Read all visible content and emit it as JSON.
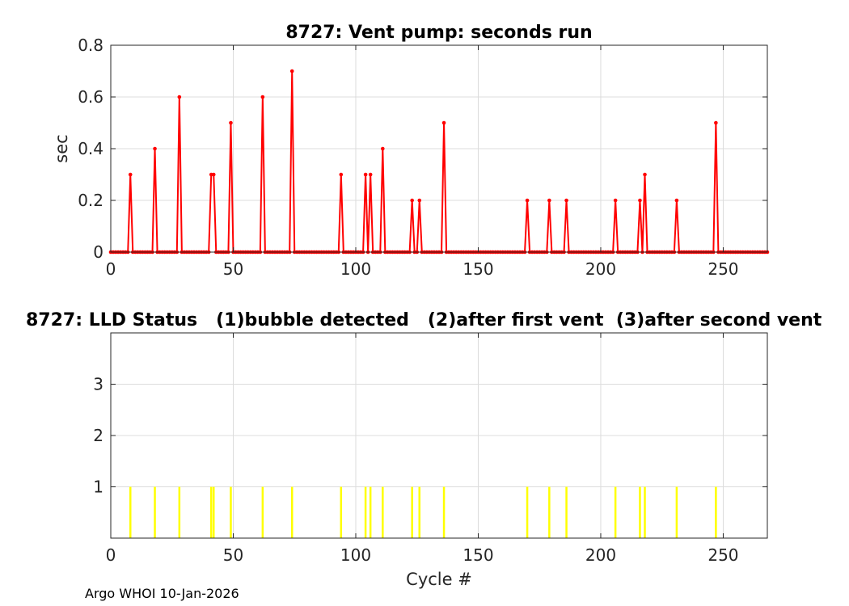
{
  "footer": "Argo WHOI 10-Jan-2026",
  "colors": {
    "pump": "#ff0000",
    "lld": "#ffff00",
    "grid": "#dcdcdc",
    "axis": "#262626"
  },
  "chart_data": [
    {
      "type": "line",
      "title": "8727: Vent pump: seconds run",
      "xlabel": "",
      "ylabel": "sec",
      "xlim": [
        0,
        268
      ],
      "ylim": [
        0,
        0.8
      ],
      "xticks": [
        0,
        50,
        100,
        150,
        200,
        250
      ],
      "yticks": [
        0,
        0.2,
        0.4,
        0.6,
        0.8
      ],
      "ytick_labels": [
        "0",
        "0.2",
        "0.4",
        "0.6",
        "0.8"
      ],
      "grid": true,
      "marker": "dot",
      "x_range": [
        0,
        268
      ],
      "baseline_value": 0,
      "nonzero_points": [
        {
          "x": 8,
          "y": 0.3
        },
        {
          "x": 18,
          "y": 0.4
        },
        {
          "x": 28,
          "y": 0.6
        },
        {
          "x": 41,
          "y": 0.3
        },
        {
          "x": 42,
          "y": 0.3
        },
        {
          "x": 49,
          "y": 0.5
        },
        {
          "x": 62,
          "y": 0.6
        },
        {
          "x": 74,
          "y": 0.7
        },
        {
          "x": 94,
          "y": 0.3
        },
        {
          "x": 104,
          "y": 0.3
        },
        {
          "x": 106,
          "y": 0.3
        },
        {
          "x": 111,
          "y": 0.4
        },
        {
          "x": 123,
          "y": 0.2
        },
        {
          "x": 126,
          "y": 0.2
        },
        {
          "x": 136,
          "y": 0.5
        },
        {
          "x": 170,
          "y": 0.2
        },
        {
          "x": 179,
          "y": 0.2
        },
        {
          "x": 186,
          "y": 0.2
        },
        {
          "x": 206,
          "y": 0.2
        },
        {
          "x": 216,
          "y": 0.2
        },
        {
          "x": 218,
          "y": 0.3
        },
        {
          "x": 231,
          "y": 0.2
        },
        {
          "x": 247,
          "y": 0.5
        }
      ]
    },
    {
      "type": "bar",
      "title": "8727: LLD Status   (1)bubble detected   (2)after first vent  (3)after second vent",
      "xlabel": "Cycle #",
      "ylabel": "",
      "xlim": [
        0,
        268
      ],
      "ylim": [
        0,
        4
      ],
      "xticks": [
        0,
        50,
        100,
        150,
        200,
        250
      ],
      "yticks": [
        1,
        2,
        3
      ],
      "grid": true,
      "x": [
        8,
        18,
        28,
        41,
        42,
        49,
        62,
        74,
        94,
        104,
        106,
        111,
        123,
        126,
        136,
        170,
        179,
        186,
        206,
        216,
        218,
        231,
        247
      ],
      "values": [
        1,
        1,
        1,
        1,
        1,
        1,
        1,
        1,
        1,
        1,
        1,
        1,
        1,
        1,
        1,
        1,
        1,
        1,
        1,
        1,
        1,
        1,
        1
      ]
    }
  ]
}
